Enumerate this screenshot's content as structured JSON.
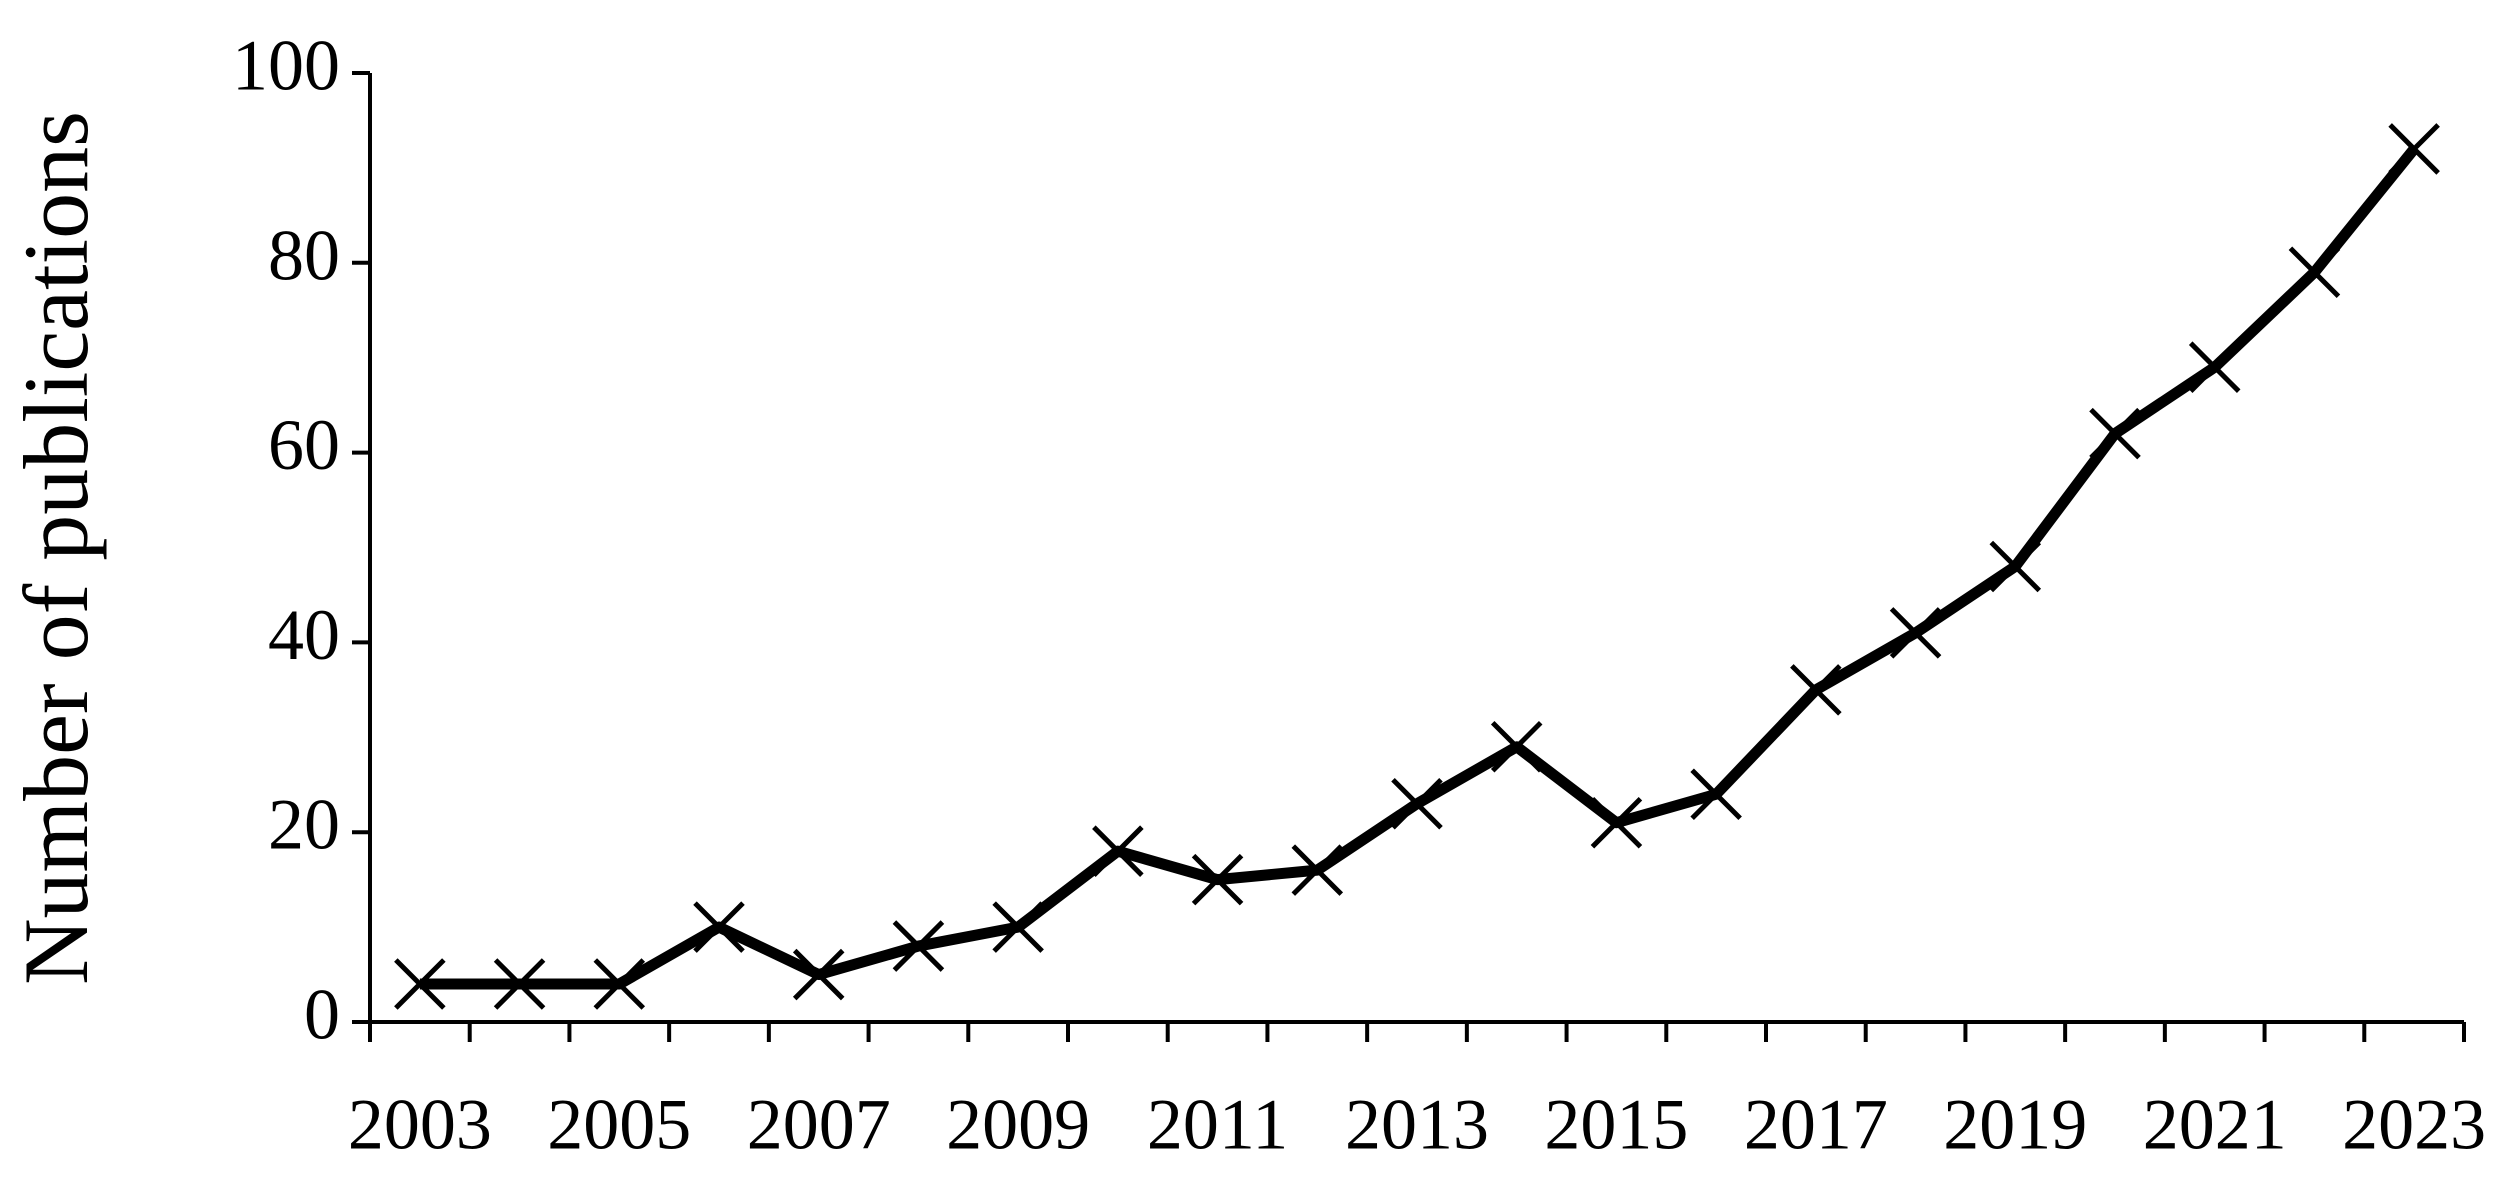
{
  "chart_data": {
    "type": "line",
    "y_label": "Number of publications",
    "categories": [
      "2003",
      null,
      "2005",
      null,
      "2007",
      null,
      "2009",
      null,
      "2011",
      null,
      "2013",
      null,
      "2015",
      null,
      "2017",
      null,
      "2019",
      null,
      "2021",
      null,
      "2023"
    ],
    "values": [
      4,
      4,
      4,
      10,
      5,
      8,
      10,
      18,
      15,
      16,
      23,
      29,
      21,
      24,
      35,
      41,
      48,
      62,
      69,
      79,
      92
    ],
    "color": "#000000",
    "ylim": [
      0,
      100
    ],
    "yticks": [
      0,
      20,
      40,
      60,
      80,
      100
    ],
    "grid": false
  }
}
